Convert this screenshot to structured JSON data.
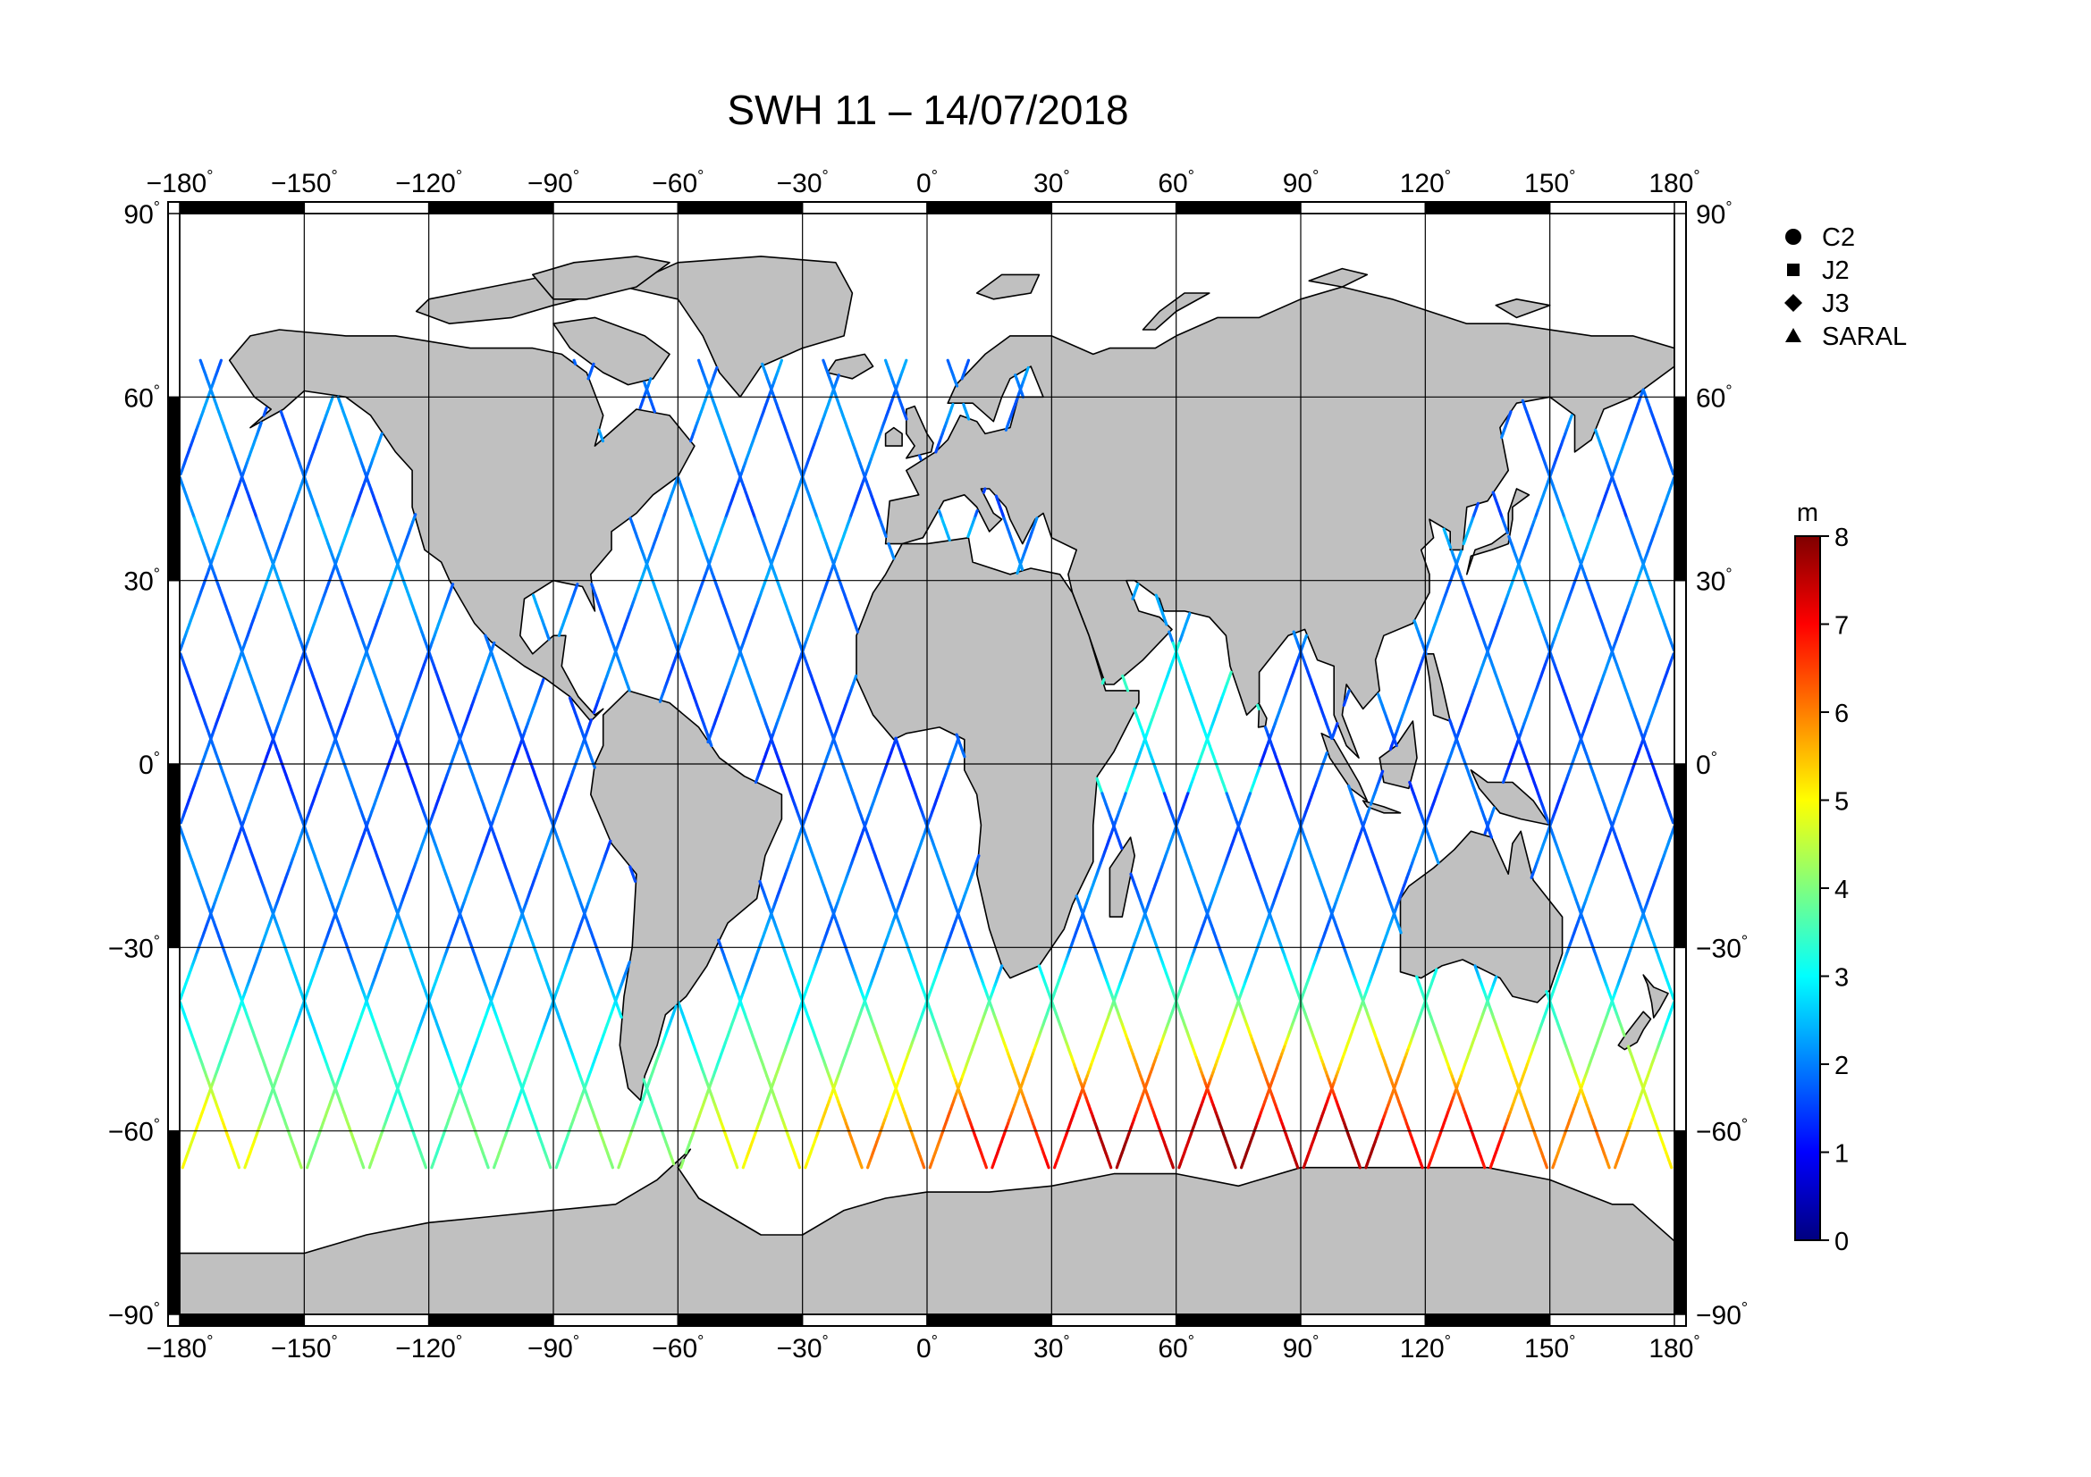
{
  "title": "SWH 11 – 14/07/2018",
  "degree_mark": "°",
  "colors": {
    "land": "#c0c0c0",
    "land_outline": "#000000",
    "ocean": "#ffffff",
    "grid": "#000000",
    "colormap": [
      "#00007f",
      "#0000ff",
      "#007fff",
      "#00ffff",
      "#7fff7f",
      "#ffff00",
      "#ff7f00",
      "#ff0000",
      "#7f0000"
    ]
  },
  "map": {
    "projection": "equirectangular",
    "lon_range": [
      -180,
      180
    ],
    "lat_range": [
      -90,
      90
    ],
    "lon_ticks": [
      -180,
      -150,
      -120,
      -90,
      -60,
      -30,
      0,
      30,
      60,
      90,
      120,
      150,
      180
    ],
    "lat_ticks": [
      -90,
      -60,
      -30,
      0,
      30,
      60,
      90
    ],
    "grid": true
  },
  "legend": {
    "placement": "right",
    "items": [
      {
        "label": "C2",
        "marker": "circle"
      },
      {
        "label": "J2",
        "marker": "square"
      },
      {
        "label": "J3",
        "marker": "diamond"
      },
      {
        "label": "SARAL",
        "marker": "triangle"
      }
    ]
  },
  "colorbar": {
    "unit": "m",
    "min": 0,
    "max": 8,
    "ticks": [
      0,
      1,
      2,
      3,
      4,
      5,
      6,
      7,
      8
    ]
  },
  "tracks": {
    "variable": "significant wave height",
    "ascending_start_lons": [
      -175,
      -160,
      -145,
      -130,
      -115,
      -100,
      -85,
      -70,
      -55,
      -40,
      -25,
      -10,
      5,
      20,
      35,
      50,
      65,
      80,
      95,
      110,
      125,
      140,
      155,
      170
    ],
    "descending_start_lons": [
      -170,
      -155,
      -140,
      -125,
      -110,
      -95,
      -80,
      -65,
      -50,
      -35,
      -20,
      -5,
      10,
      25,
      40,
      55,
      70,
      85,
      100,
      115,
      130,
      145,
      160,
      175
    ],
    "lat_extent": [
      -66,
      66
    ]
  }
}
